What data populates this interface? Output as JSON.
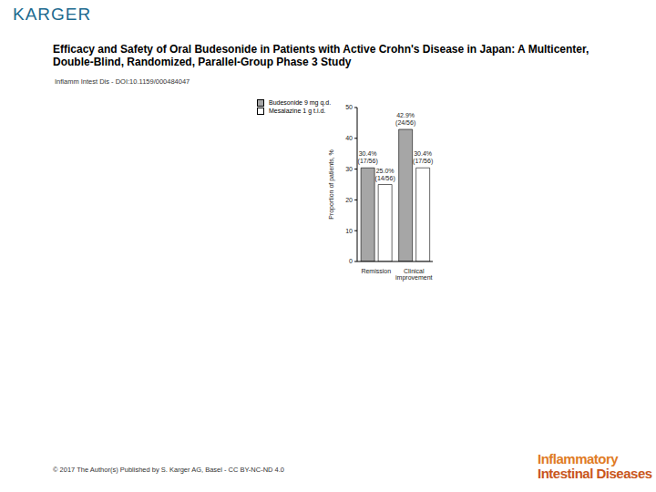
{
  "slide": {
    "publisher": "KARGER",
    "title": "Efficacy and Safety of Oral Budesonide in Patients with Active Crohn's Disease in Japan: A Multicenter, Double-Blind, Randomized, Parallel-Group Phase 3 Study",
    "citation": "Inflamm Intest Dis - DOI:10.1159/000484047",
    "footer": "© 2017 The Author(s) Published by S. Karger AG, Basel - CC BY-NC-ND 4.0",
    "journal": [
      "Inflammatory",
      "Intestinal Diseases"
    ]
  },
  "chart_data": {
    "type": "bar",
    "y_label": "Proportion of patients, %",
    "categories": [
      "Remission",
      "Clinical improvement"
    ],
    "series": [
      {
        "name": "Budesonide 9 mg q.d.",
        "color": "#a6a6a6",
        "values": [
          30.4,
          42.9
        ],
        "value_labels": [
          "30.4%\n(17/56)",
          "42.9%\n(24/56)"
        ]
      },
      {
        "name": "Mesalazine 1 g t.i.d.",
        "color": "#ffffff",
        "values": [
          25.0,
          30.4
        ],
        "value_labels": [
          "25.0%\n(14/56)",
          "30.4%\n(17/56)"
        ]
      }
    ],
    "ylim": [
      0,
      50
    ],
    "yticks": [
      0,
      10,
      20,
      30,
      40,
      50
    ],
    "grid": false,
    "legend": "upper left",
    "data_labels": true
  }
}
